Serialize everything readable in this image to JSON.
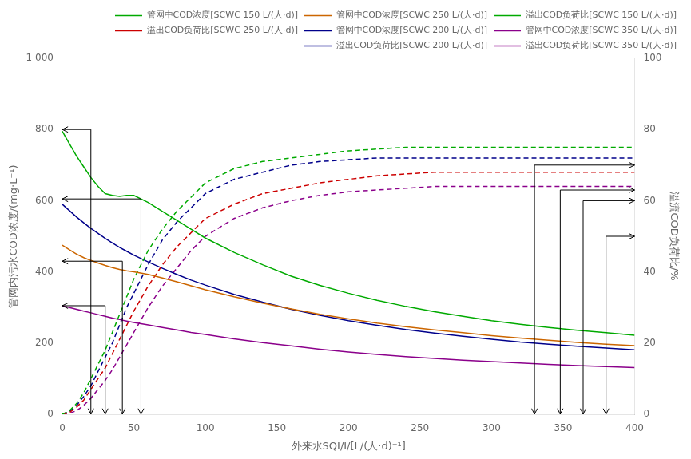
{
  "chart_data": {
    "type": "line",
    "x_label": "外来水SQI/I/[L/(人·d)⁻¹]",
    "y_label": "管网内污水COD浓度/(mg·L⁻¹)",
    "y2_label": "溢流COD负荷比/%",
    "xlim": [
      0,
      400
    ],
    "xticks": [
      0,
      50,
      100,
      150,
      200,
      250,
      300,
      350,
      400
    ],
    "ylim": [
      0,
      1000
    ],
    "yticks": [
      0,
      200,
      400,
      600,
      800,
      {
        "value": 1000,
        "label": "1 000"
      }
    ],
    "y2lim": [
      0,
      100
    ],
    "y2ticks": [
      0,
      20,
      40,
      60,
      80,
      100
    ],
    "grid": false,
    "legend": "upper right",
    "x": [
      0,
      5,
      10,
      15,
      20,
      25,
      30,
      35,
      40,
      45,
      50,
      60,
      70,
      80,
      90,
      100,
      120,
      140,
      160,
      180,
      200,
      220,
      240,
      260,
      280,
      300,
      320,
      340,
      360,
      380,
      400
    ],
    "series": [
      {
        "name": "管网中COD浓度[SCWC 150 L/(人·d)]",
        "color": "#00aa00",
        "line_style": "solid",
        "values": [
          795,
          760,
          725,
          695,
          665,
          640,
          620,
          615,
          612,
          615,
          615,
          595,
          570,
          545,
          520,
          495,
          455,
          420,
          388,
          362,
          340,
          320,
          303,
          288,
          275,
          263,
          253,
          244,
          236,
          229,
          222
        ]
      },
      {
        "name": "管网中COD浓度[SCWC 250 L/(人·d)]",
        "color": "#cc6600",
        "line_style": "solid",
        "values": [
          475,
          462,
          450,
          440,
          432,
          425,
          418,
          412,
          407,
          403,
          400,
          393,
          383,
          372,
          361,
          350,
          330,
          312,
          296,
          281,
          268,
          256,
          246,
          237,
          229,
          221,
          214,
          208,
          202,
          197,
          193
        ]
      },
      {
        "name": "溢出COD负荷比[SCWC 150 L/(人·d)]",
        "color": "#00aa00",
        "line_style": "dashed",
        "axis": "y2",
        "values": [
          0,
          1,
          3,
          6,
          10,
          14,
          18,
          23,
          28,
          33,
          38,
          46,
          52,
          57,
          61,
          65,
          69,
          71,
          72,
          73,
          74,
          74.5,
          75,
          75,
          75,
          75,
          75,
          75,
          75,
          75,
          75
        ]
      },
      {
        "name": "溢出COD负荷比[SCWC 250 L/(人·d)]",
        "color": "#cc0000",
        "line_style": "dashed",
        "axis": "y2",
        "values": [
          0,
          0.5,
          2,
          4,
          7,
          10,
          13,
          17,
          21,
          25,
          29,
          36,
          42,
          47,
          51,
          55,
          59,
          62,
          63.5,
          65,
          66,
          67,
          67.5,
          68,
          68,
          68,
          68,
          68,
          68,
          68,
          68
        ]
      },
      {
        "name": "管网中COD浓度[SCWC 200 L/(人·d)]",
        "color": "#00008b",
        "line_style": "solid",
        "values": [
          590,
          572,
          554,
          538,
          522,
          508,
          494,
          481,
          469,
          458,
          447,
          428,
          410,
          393,
          377,
          363,
          337,
          315,
          295,
          278,
          263,
          250,
          238,
          228,
          219,
          211,
          203,
          197,
          191,
          186,
          181
        ]
      },
      {
        "name": "管网中COD浓度[SCWC 350 L/(人·d)]",
        "color": "#8b008b",
        "line_style": "solid",
        "values": [
          305,
          300,
          295,
          290,
          285,
          280,
          275,
          270,
          266,
          262,
          258,
          251,
          244,
          237,
          230,
          224,
          212,
          201,
          192,
          183,
          175,
          168,
          162,
          157,
          152,
          148,
          144,
          140,
          137,
          134,
          131
        ]
      },
      {
        "name": "溢出COD负荷比[SCWC 200 L/(人·d)]",
        "color": "#00008b",
        "line_style": "dashed",
        "axis": "y2",
        "values": [
          0,
          0.8,
          2.5,
          5,
          8,
          12,
          16,
          20,
          25,
          30,
          34,
          42,
          49,
          54,
          58,
          62,
          66,
          68,
          70,
          71,
          71.5,
          72,
          72,
          72,
          72,
          72,
          72,
          72,
          72,
          72,
          72
        ]
      },
      {
        "name": "溢出COD负荷比[SCWC 350 L/(人·d)]",
        "color": "#8b008b",
        "line_style": "dashed",
        "axis": "y2",
        "values": [
          0,
          0.3,
          1,
          2.5,
          4.5,
          7,
          9.5,
          12.5,
          16,
          19.5,
          23,
          30,
          36,
          41,
          46,
          50,
          55,
          58,
          60,
          61.5,
          62.5,
          63,
          63.5,
          64,
          64,
          64,
          64,
          64,
          64,
          64,
          64
        ]
      }
    ],
    "arrows_left": [
      {
        "x": 20,
        "y": 800
      },
      {
        "x": 55,
        "y": 605
      },
      {
        "x": 42,
        "y": 430
      },
      {
        "x": 30,
        "y": 305
      }
    ],
    "arrows_right": [
      {
        "x": 330,
        "y": 70
      },
      {
        "x": 348,
        "y": 63
      },
      {
        "x": 364,
        "y": 60
      },
      {
        "x": 380,
        "y": 50
      }
    ]
  }
}
